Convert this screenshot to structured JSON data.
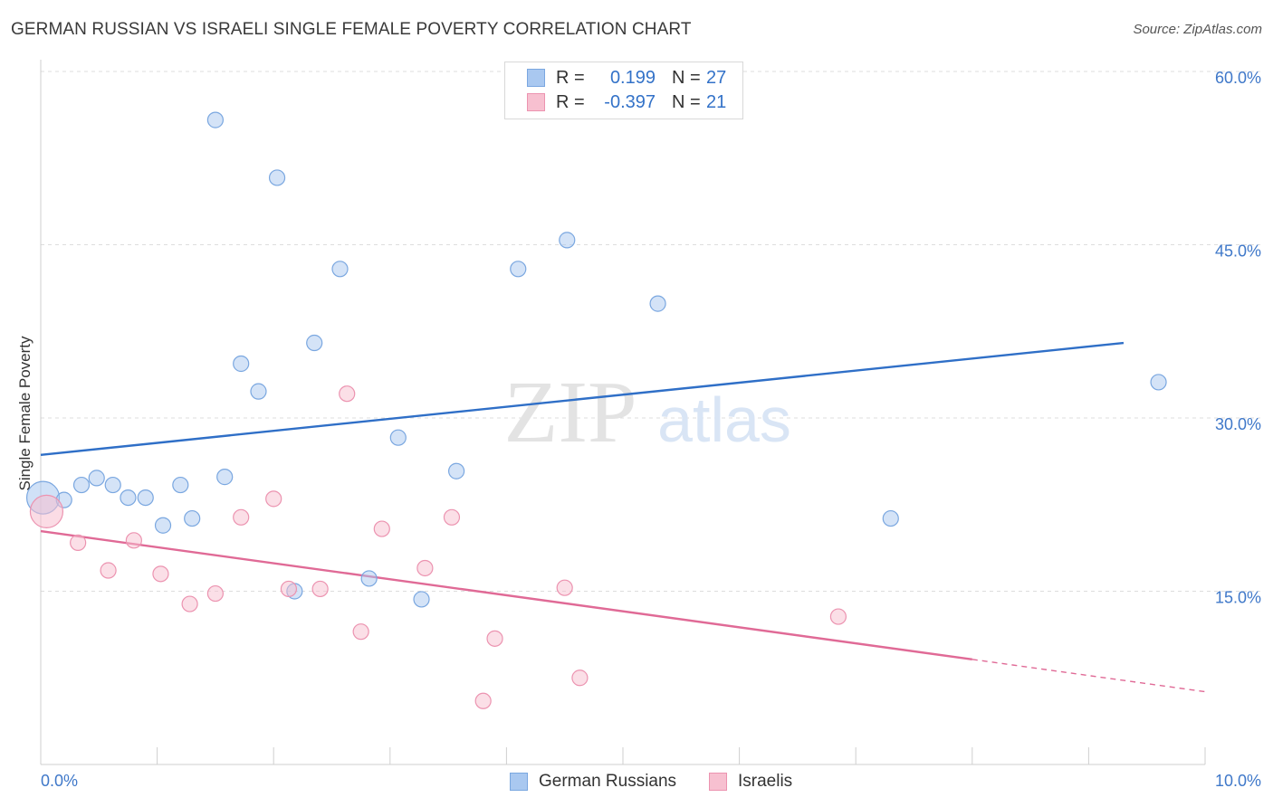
{
  "title": "GERMAN RUSSIAN VS ISRAELI SINGLE FEMALE POVERTY CORRELATION CHART",
  "source": "Source: ZipAtlas.com",
  "watermark": {
    "zip": "ZIP",
    "atlas": "atlas"
  },
  "legend": {
    "rows": [
      {
        "r_label": "R =",
        "r_value": "0.199",
        "n_label": "N =",
        "n_value": "27",
        "color": "#a9c8f0",
        "border": "#7aa7e0"
      },
      {
        "r_label": "R =",
        "r_value": "-0.397",
        "n_label": "N =",
        "n_value": "21",
        "color": "#f7c0d0",
        "border": "#ec93b0"
      }
    ]
  },
  "bottom_legend": [
    {
      "label": "German Russians",
      "color": "#a9c8f0",
      "border": "#7aa7e0"
    },
    {
      "label": "Israelis",
      "color": "#f7c0d0",
      "border": "#ec93b0"
    }
  ],
  "chart_data": {
    "type": "scatter",
    "title": "GERMAN RUSSIAN VS ISRAELI SINGLE FEMALE POVERTY CORRELATION CHART",
    "xlabel": "",
    "ylabel": "Single Female Poverty",
    "xlim": [
      0,
      10
    ],
    "ylim": [
      0,
      60
    ],
    "x_tick_labels": [
      "0.0%",
      "10.0%"
    ],
    "y_tick_values": [
      15,
      30,
      45,
      60
    ],
    "y_tick_labels": [
      "15.0%",
      "30.0%",
      "45.0%",
      "60.0%"
    ],
    "grid": true,
    "series": [
      {
        "name": "German Russians",
        "color": "#a9c8f0",
        "stroke": "#7aa7e0",
        "trend_color": "#2f6fc7",
        "trend": {
          "x": [
            0,
            9.3
          ],
          "y": [
            26.8,
            36.5
          ]
        },
        "points": [
          [
            0.02,
            23.1,
            "big"
          ],
          [
            0.2,
            22.9
          ],
          [
            0.35,
            24.2
          ],
          [
            0.48,
            24.8
          ],
          [
            0.62,
            24.2
          ],
          [
            0.75,
            23.1
          ],
          [
            0.9,
            23.1
          ],
          [
            1.05,
            20.7
          ],
          [
            1.2,
            24.2
          ],
          [
            1.3,
            21.3
          ],
          [
            1.5,
            55.8
          ],
          [
            1.58,
            24.9
          ],
          [
            1.72,
            34.7
          ],
          [
            1.87,
            32.3
          ],
          [
            2.03,
            50.8
          ],
          [
            2.18,
            15.0
          ],
          [
            2.35,
            36.5
          ],
          [
            2.57,
            42.9
          ],
          [
            2.82,
            16.1
          ],
          [
            3.07,
            28.3
          ],
          [
            3.27,
            14.3
          ],
          [
            3.57,
            25.4
          ],
          [
            4.1,
            42.9
          ],
          [
            4.52,
            45.4
          ],
          [
            5.3,
            39.9
          ],
          [
            7.3,
            21.3
          ],
          [
            9.6,
            33.1
          ]
        ]
      },
      {
        "name": "Israelis",
        "color": "#f7c0d0",
        "stroke": "#ec93b0",
        "trend_color": "#e06a96",
        "trend": {
          "x": [
            0,
            8.0
          ],
          "y": [
            20.2,
            9.1
          ]
        },
        "trend_dashed": {
          "x": [
            8.0,
            10.0
          ],
          "y": [
            9.1,
            6.3
          ]
        },
        "points": [
          [
            0.05,
            21.9,
            "big"
          ],
          [
            0.32,
            19.2
          ],
          [
            0.58,
            16.8
          ],
          [
            0.8,
            19.4
          ],
          [
            1.03,
            16.5
          ],
          [
            1.28,
            13.9
          ],
          [
            1.5,
            14.8
          ],
          [
            1.72,
            21.4
          ],
          [
            2.0,
            23.0
          ],
          [
            2.13,
            15.2
          ],
          [
            2.4,
            15.2
          ],
          [
            2.63,
            32.1
          ],
          [
            2.75,
            11.5
          ],
          [
            2.93,
            20.4
          ],
          [
            3.3,
            17.0
          ],
          [
            3.53,
            21.4
          ],
          [
            3.8,
            5.5
          ],
          [
            3.9,
            10.9
          ],
          [
            4.5,
            15.3
          ],
          [
            4.63,
            7.5
          ],
          [
            6.85,
            12.8
          ]
        ]
      }
    ]
  }
}
